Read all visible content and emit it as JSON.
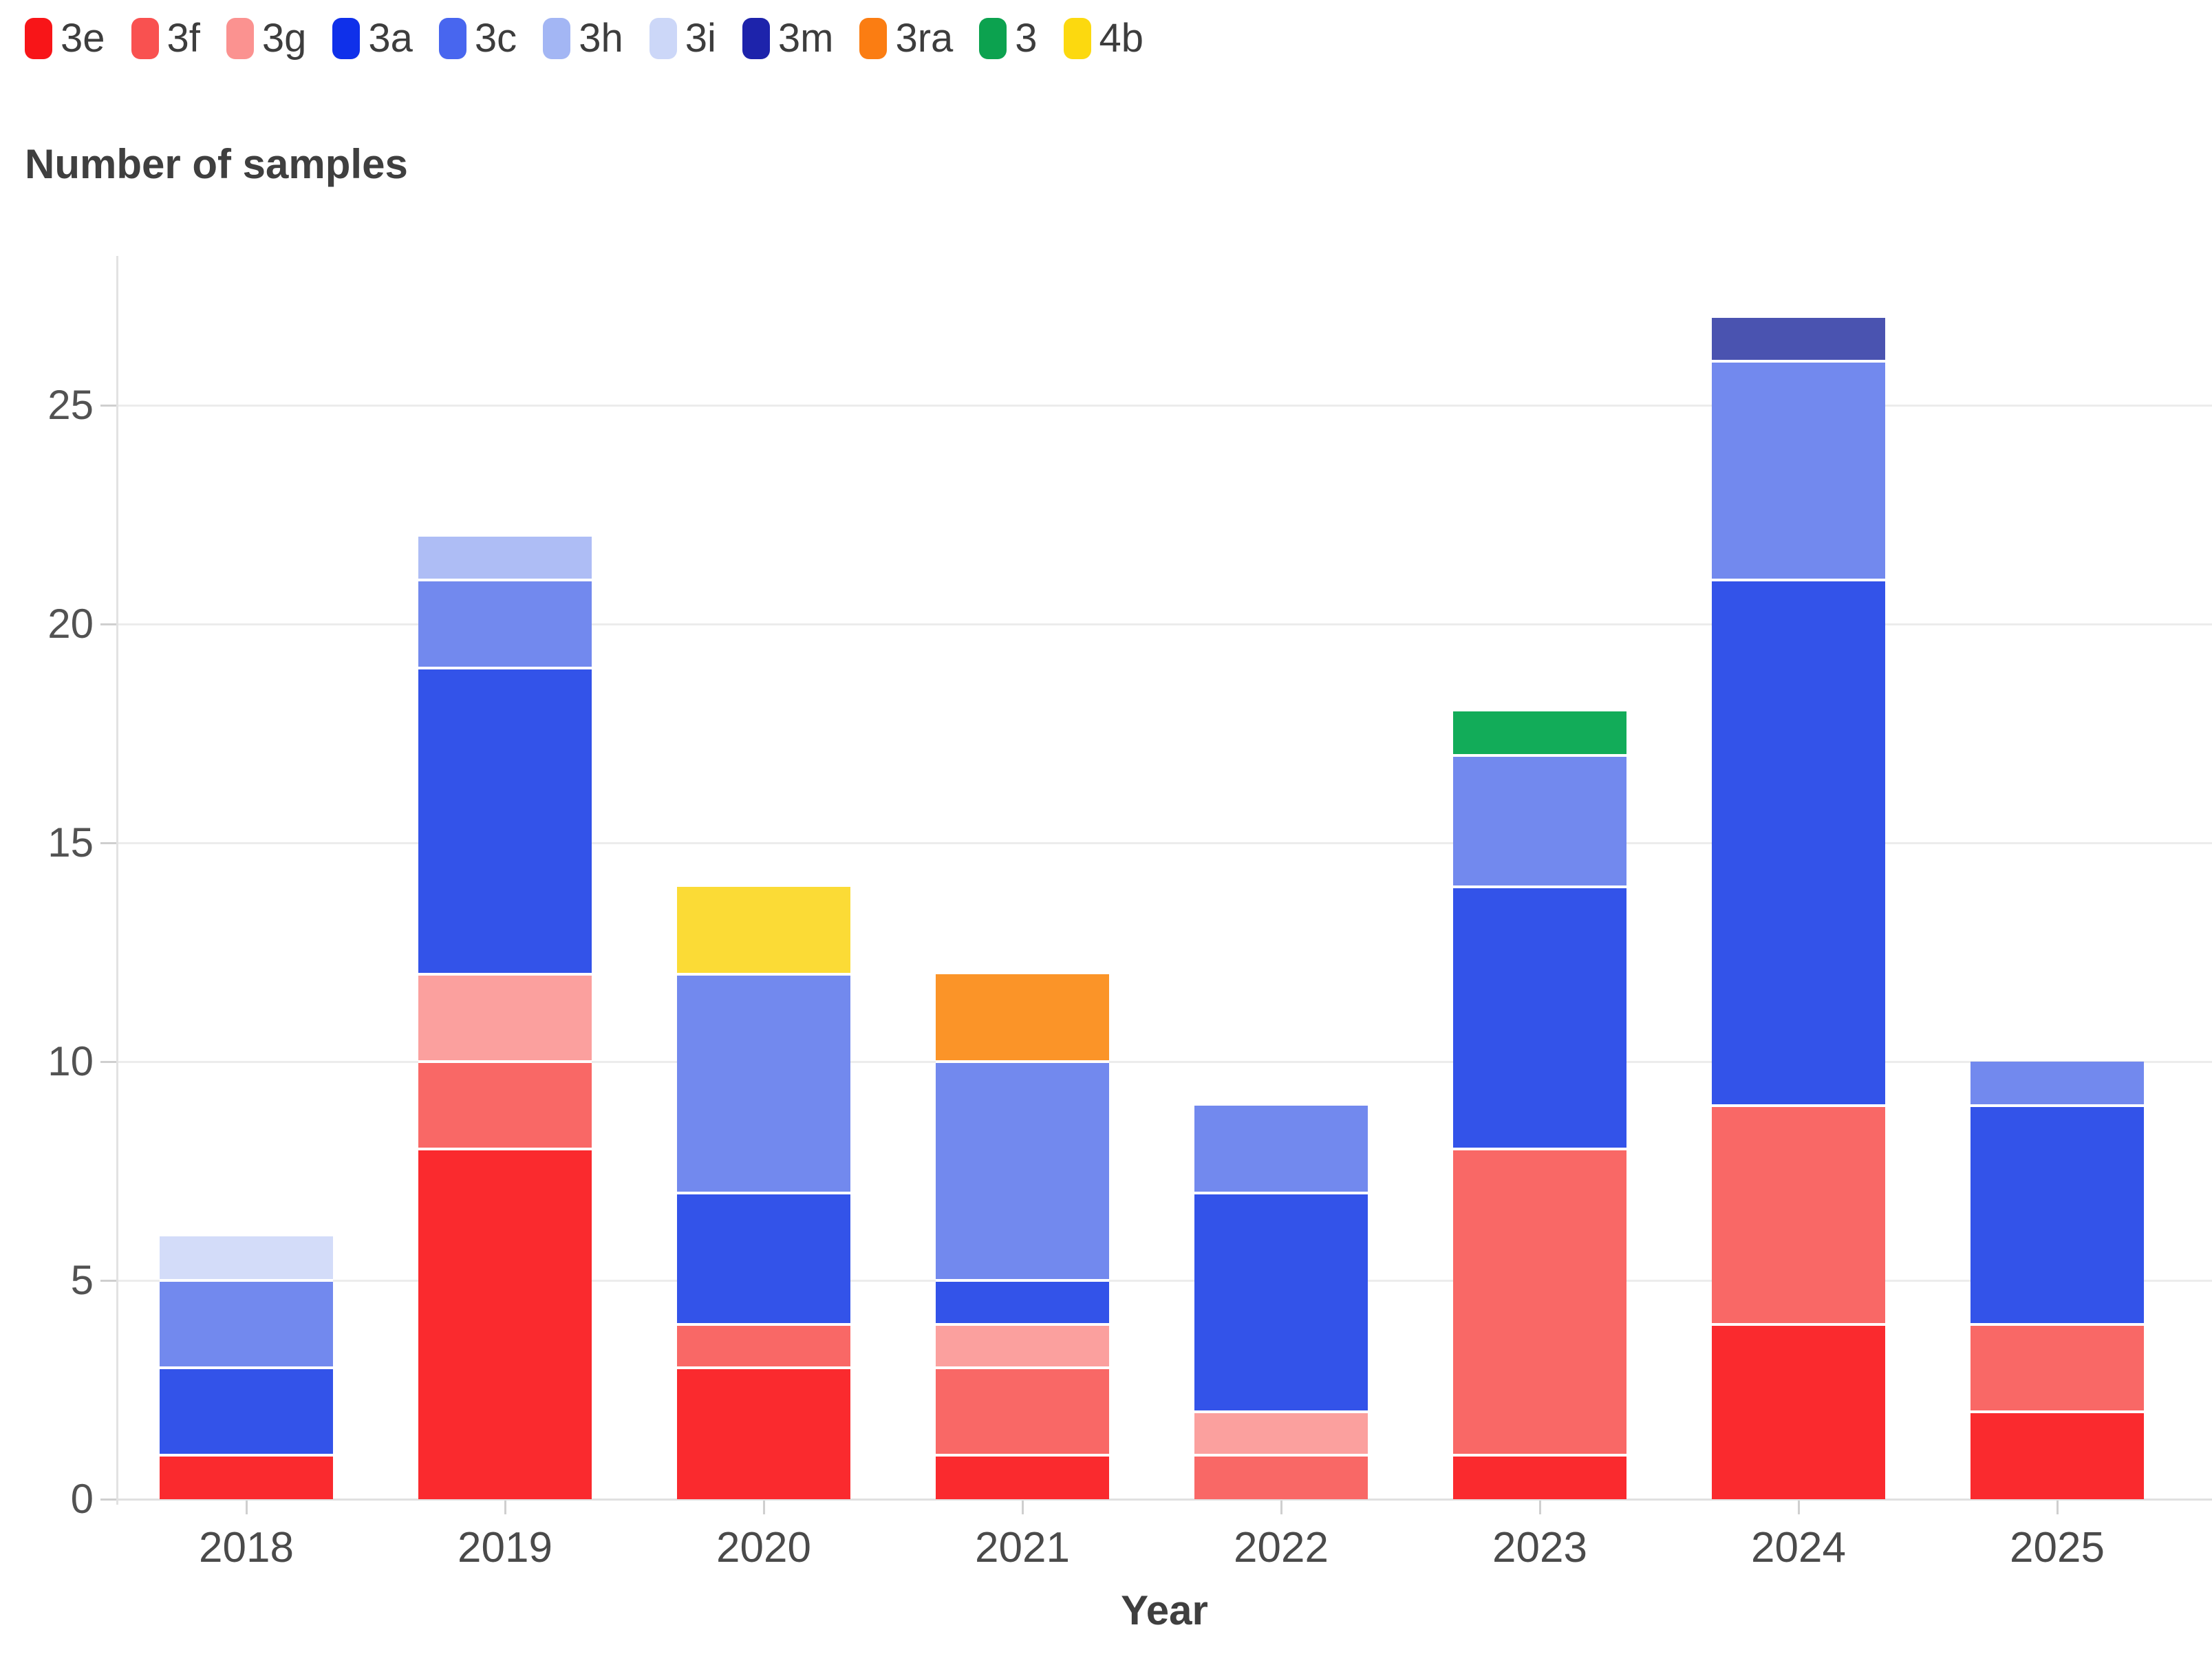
{
  "title": "Number of samples",
  "axis": {
    "x_label": "Year",
    "y_ticks": [
      0,
      5,
      10,
      15,
      20,
      25
    ]
  },
  "legend": {
    "items": [
      {
        "label": "3e",
        "color": "#f81518"
      },
      {
        "label": "3f",
        "color": "#f95150"
      },
      {
        "label": "3g",
        "color": "#fb9290"
      },
      {
        "label": "3a",
        "color": "#0f30ea"
      },
      {
        "label": "3c",
        "color": "#4866ef"
      },
      {
        "label": "3h",
        "color": "#a3b6f4"
      },
      {
        "label": "3i",
        "color": "#ccd7f8"
      },
      {
        "label": "3m",
        "color": "#1d23ab"
      },
      {
        "label": "3ra",
        "color": "#fb7d12"
      },
      {
        "label": "3",
        "color": "#0ca24f"
      },
      {
        "label": "4b",
        "color": "#fcd90f"
      }
    ]
  },
  "chart_data": {
    "type": "bar",
    "stacked": true,
    "title": "Number of samples",
    "xlabel": "Year",
    "ylabel": "",
    "ylim": [
      0,
      28.3
    ],
    "grid": true,
    "legend_position": "top-left",
    "categories": [
      "2018",
      "2019",
      "2020",
      "2021",
      "2022",
      "2023",
      "2024",
      "2025"
    ],
    "series": [
      {
        "name": "3e",
        "color": "#fa2a2e",
        "values": [
          1,
          8,
          3,
          1,
          0,
          1,
          4,
          2
        ]
      },
      {
        "name": "3f",
        "color": "#f96866",
        "values": [
          0,
          2,
          1,
          2,
          1,
          7,
          5,
          2
        ]
      },
      {
        "name": "3g",
        "color": "#fba09e",
        "values": [
          0,
          2,
          0,
          1,
          1,
          0,
          0,
          0
        ]
      },
      {
        "name": "3a",
        "color": "#3353e9",
        "values": [
          2,
          7,
          3,
          1,
          5,
          6,
          12,
          5
        ]
      },
      {
        "name": "3c",
        "color": "#7289ee",
        "values": [
          2,
          2,
          5,
          5,
          2,
          3,
          5,
          1
        ]
      },
      {
        "name": "3h",
        "color": "#aebdf5",
        "values": [
          0,
          1,
          0,
          0,
          0,
          0,
          0,
          0
        ]
      },
      {
        "name": "3i",
        "color": "#d3dcf9",
        "values": [
          1,
          0,
          0,
          0,
          0,
          0,
          0,
          0
        ]
      },
      {
        "name": "3m",
        "color": "#4a53b0",
        "values": [
          0,
          0,
          0,
          0,
          0,
          0,
          1,
          0
        ]
      },
      {
        "name": "3ra",
        "color": "#fb9428",
        "values": [
          0,
          0,
          0,
          2,
          0,
          0,
          0,
          0
        ]
      },
      {
        "name": "3",
        "color": "#12ac59",
        "values": [
          0,
          0,
          0,
          0,
          0,
          1,
          0,
          0
        ]
      },
      {
        "name": "4b",
        "color": "#fbdb36",
        "values": [
          0,
          0,
          2,
          0,
          0,
          0,
          0,
          0
        ]
      }
    ],
    "totals": [
      6,
      22,
      14,
      12,
      9,
      18,
      27,
      10
    ]
  }
}
